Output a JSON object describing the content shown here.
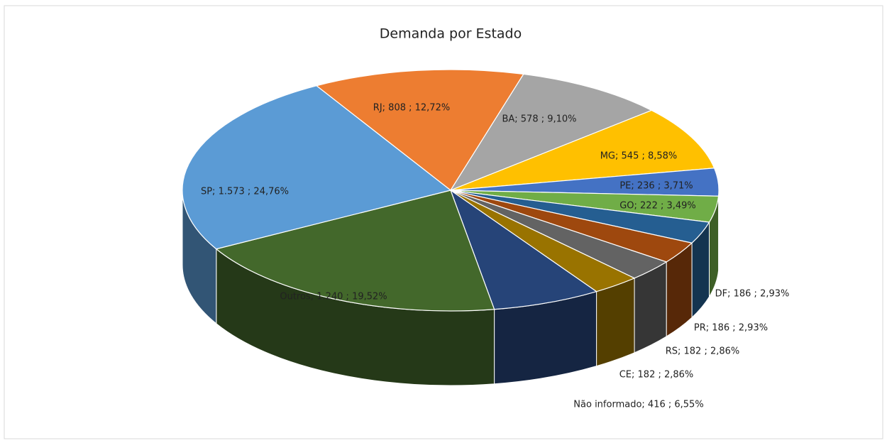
{
  "chart_data": {
    "type": "pie",
    "title": "Demanda por Estado",
    "values": [
      808,
      578,
      545,
      236,
      222,
      186,
      186,
      182,
      182,
      416,
      1240,
      1573
    ],
    "value_labels": [
      "RJ; 808 ; 12,72%",
      "BA; 578 ; 9,10%",
      "MG; 545 ; 8,58%",
      "PE; 236 ; 3,71%",
      "GO; 222 ; 3,49%",
      "DF; 186 ; 2,93%",
      "PR; 186 ; 2,93%",
      "RS; 182 ; 2,86%",
      "CE; 182 ; 2,86%",
      "Não informado; 416 ; 6,55%",
      "Outros; 1.240 ; 19,52%",
      "SP; 1.573 ; 24,76%"
    ],
    "colors": [
      "#ed7d31",
      "#a5a5a5",
      "#ffc000",
      "#4472c4",
      "#70ad47",
      "#255e91",
      "#9e480e",
      "#636363",
      "#997300",
      "#264478",
      "#43682b",
      "#5b9bd5"
    ]
  }
}
